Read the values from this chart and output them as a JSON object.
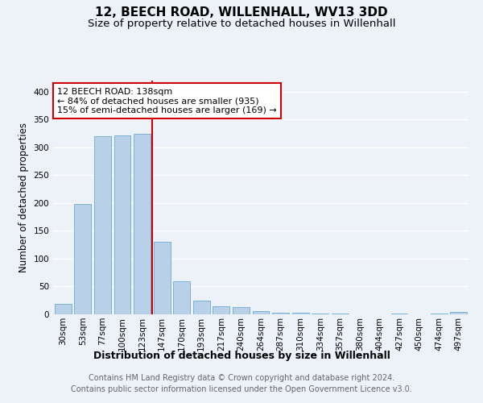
{
  "title": "12, BEECH ROAD, WILLENHALL, WV13 3DD",
  "subtitle": "Size of property relative to detached houses in Willenhall",
  "xlabel": "Distribution of detached houses by size in Willenhall",
  "ylabel": "Number of detached properties",
  "categories": [
    "30sqm",
    "53sqm",
    "77sqm",
    "100sqm",
    "123sqm",
    "147sqm",
    "170sqm",
    "193sqm",
    "217sqm",
    "240sqm",
    "264sqm",
    "287sqm",
    "310sqm",
    "334sqm",
    "357sqm",
    "380sqm",
    "404sqm",
    "427sqm",
    "450sqm",
    "474sqm",
    "497sqm"
  ],
  "values": [
    19,
    198,
    320,
    322,
    325,
    130,
    60,
    25,
    15,
    13,
    6,
    3,
    3,
    1,
    1,
    0,
    0,
    2,
    0,
    1,
    4
  ],
  "bar_color": "#b8d0e8",
  "bar_edge_color": "#6aaad4",
  "vline_x_index": 5,
  "vline_color": "#cc0000",
  "annotation_text": "12 BEECH ROAD: 138sqm\n← 84% of detached houses are smaller (935)\n15% of semi-detached houses are larger (169) →",
  "annotation_box_color": "#ffffff",
  "annotation_box_edge": "#cc0000",
  "footer_text": "Contains HM Land Registry data © Crown copyright and database right 2024.\nContains public sector information licensed under the Open Government Licence v3.0.",
  "ylim": [
    0,
    420
  ],
  "yticks": [
    0,
    50,
    100,
    150,
    200,
    250,
    300,
    350,
    400
  ],
  "background_color": "#edf2f9",
  "grid_color": "#ffffff",
  "title_fontsize": 11,
  "subtitle_fontsize": 9.5,
  "footer_fontsize": 7,
  "ylabel_fontsize": 8.5,
  "xlabel_fontsize": 9,
  "tick_fontsize": 7.5,
  "annot_fontsize": 8
}
